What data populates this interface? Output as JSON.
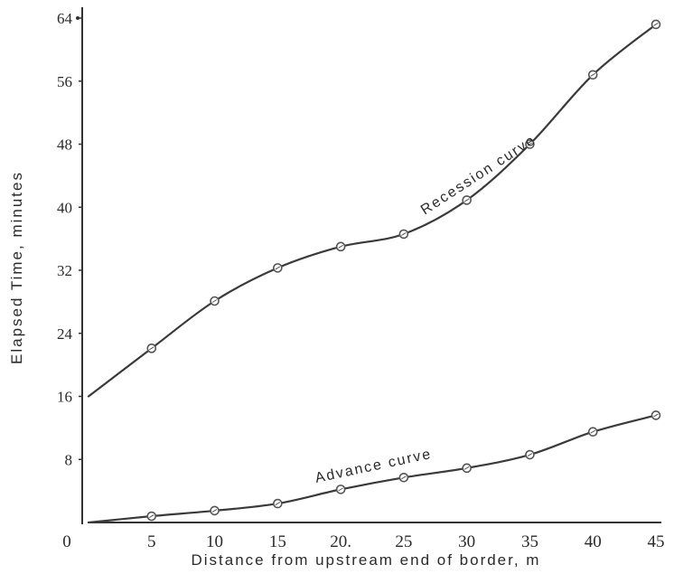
{
  "chart_data": {
    "type": "line",
    "xlabel": "Distance from upstream end of border, m",
    "ylabel": "Elapsed Time, minutes",
    "xlim": [
      0,
      45
    ],
    "ylim": [
      0,
      64
    ],
    "x_tick_labels": [
      {
        "value": 0,
        "label": "0"
      },
      {
        "value": 5,
        "label": "5"
      },
      {
        "value": 10,
        "label": "10"
      },
      {
        "value": 15,
        "label": "15"
      },
      {
        "value": 20,
        "label": "20."
      },
      {
        "value": 25,
        "label": "25"
      },
      {
        "value": 30,
        "label": "30"
      },
      {
        "value": 35,
        "label": "35"
      },
      {
        "value": 40,
        "label": "40"
      },
      {
        "value": 45,
        "label": "45"
      }
    ],
    "y_tick_labels": [
      {
        "value": 8,
        "label": "8"
      },
      {
        "value": 16,
        "label": "16"
      },
      {
        "value": 24,
        "label": "24"
      },
      {
        "value": 32,
        "label": "32"
      },
      {
        "value": 40,
        "label": "40"
      },
      {
        "value": 48,
        "label": "48"
      },
      {
        "value": 56,
        "label": "56"
      },
      {
        "value": 64,
        "label": "64"
      }
    ],
    "series": [
      {
        "name": "Recession curve",
        "x": [
          0,
          5,
          10,
          15,
          20,
          25,
          30,
          35,
          40,
          45
        ],
        "y": [
          16,
          22.1,
          28.1,
          32.3,
          35,
          36.6,
          40.9,
          48,
          56.8,
          63.2
        ],
        "marker_x": [
          5,
          10,
          15,
          20,
          25,
          30,
          35,
          40,
          45
        ]
      },
      {
        "name": "Advance curve",
        "x": [
          0,
          5,
          10,
          15,
          20,
          25,
          30,
          35,
          40,
          45
        ],
        "y": [
          0,
          0.8,
          1.5,
          2.4,
          4.2,
          5.7,
          6.9,
          8.6,
          11.5,
          13.6
        ],
        "marker_x": [
          5,
          10,
          15,
          20,
          25,
          30,
          35,
          40,
          45
        ]
      }
    ],
    "grid": false,
    "colors": {
      "line": "#3a3a3a",
      "marker": "#555555",
      "text": "#2a2a2a"
    }
  }
}
